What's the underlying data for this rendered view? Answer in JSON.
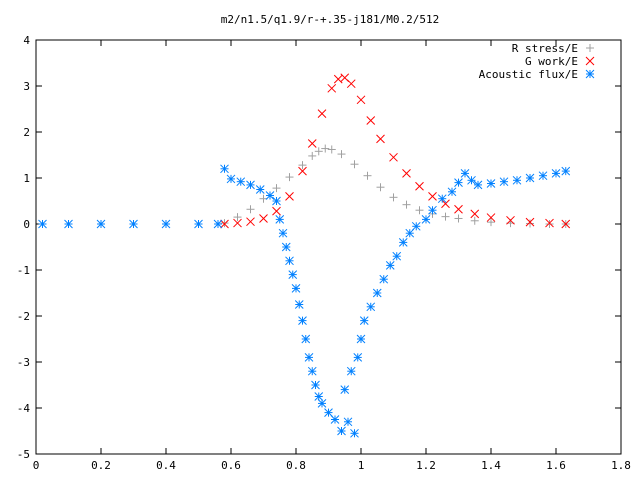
{
  "chart_data": {
    "type": "scatter",
    "title": "m2/n1.5/q1.9/r-+.35-j181/M0.2/512",
    "xlabel": "",
    "ylabel": "",
    "xlim": [
      0,
      1.8
    ],
    "ylim": [
      -5,
      4
    ],
    "xticks": [
      "0",
      "0.2",
      "0.4",
      "0.6",
      "0.8",
      "1",
      "1.2",
      "1.4",
      "1.6",
      "1.8"
    ],
    "yticks": [
      "4",
      "3",
      "2",
      "1",
      "0",
      "-1",
      "-2",
      "-3",
      "-4",
      "-5"
    ],
    "grid": false,
    "legend_position": "top-right",
    "series": [
      {
        "name": "R stress/E",
        "marker": "plus",
        "color": "#a0a0a0",
        "points": [
          [
            0.58,
            0.02
          ],
          [
            0.62,
            0.15
          ],
          [
            0.66,
            0.32
          ],
          [
            0.7,
            0.55
          ],
          [
            0.74,
            0.78
          ],
          [
            0.78,
            1.02
          ],
          [
            0.82,
            1.28
          ],
          [
            0.85,
            1.48
          ],
          [
            0.87,
            1.58
          ],
          [
            0.89,
            1.64
          ],
          [
            0.91,
            1.62
          ],
          [
            0.94,
            1.52
          ],
          [
            0.98,
            1.3
          ],
          [
            1.02,
            1.05
          ],
          [
            1.06,
            0.8
          ],
          [
            1.1,
            0.58
          ],
          [
            1.14,
            0.42
          ],
          [
            1.18,
            0.3
          ],
          [
            1.22,
            0.22
          ],
          [
            1.26,
            0.16
          ],
          [
            1.3,
            0.12
          ],
          [
            1.35,
            0.07
          ],
          [
            1.4,
            0.04
          ],
          [
            1.46,
            0.02
          ],
          [
            1.52,
            0.01
          ],
          [
            1.58,
            0.0
          ],
          [
            1.63,
            0.0
          ]
        ]
      },
      {
        "name": "G work/E",
        "marker": "cross",
        "color": "#ff0000",
        "points": [
          [
            0.58,
            0.0
          ],
          [
            0.62,
            0.02
          ],
          [
            0.66,
            0.05
          ],
          [
            0.7,
            0.12
          ],
          [
            0.74,
            0.28
          ],
          [
            0.78,
            0.6
          ],
          [
            0.82,
            1.15
          ],
          [
            0.85,
            1.75
          ],
          [
            0.88,
            2.4
          ],
          [
            0.91,
            2.95
          ],
          [
            0.93,
            3.15
          ],
          [
            0.95,
            3.18
          ],
          [
            0.97,
            3.05
          ],
          [
            1.0,
            2.7
          ],
          [
            1.03,
            2.25
          ],
          [
            1.06,
            1.85
          ],
          [
            1.1,
            1.45
          ],
          [
            1.14,
            1.1
          ],
          [
            1.18,
            0.82
          ],
          [
            1.22,
            0.6
          ],
          [
            1.26,
            0.44
          ],
          [
            1.3,
            0.32
          ],
          [
            1.35,
            0.22
          ],
          [
            1.4,
            0.14
          ],
          [
            1.46,
            0.08
          ],
          [
            1.52,
            0.04
          ],
          [
            1.58,
            0.02
          ],
          [
            1.63,
            0.0
          ]
        ]
      },
      {
        "name": "Acoustic flux/E",
        "marker": "star",
        "color": "#0080ff",
        "points": [
          [
            0.58,
            1.2
          ],
          [
            0.6,
            0.98
          ],
          [
            0.63,
            0.92
          ],
          [
            0.66,
            0.85
          ],
          [
            0.69,
            0.75
          ],
          [
            0.72,
            0.62
          ],
          [
            0.74,
            0.5
          ],
          [
            0.75,
            0.1
          ],
          [
            0.76,
            -0.2
          ],
          [
            0.77,
            -0.5
          ],
          [
            0.78,
            -0.8
          ],
          [
            0.79,
            -1.1
          ],
          [
            0.8,
            -1.4
          ],
          [
            0.81,
            -1.75
          ],
          [
            0.82,
            -2.1
          ],
          [
            0.83,
            -2.5
          ],
          [
            0.84,
            -2.9
          ],
          [
            0.85,
            -3.2
          ],
          [
            0.86,
            -3.5
          ],
          [
            0.87,
            -3.75
          ],
          [
            0.88,
            -3.9
          ],
          [
            0.9,
            -4.1
          ],
          [
            0.92,
            -4.25
          ],
          [
            0.94,
            -4.5
          ],
          [
            0.96,
            -4.3
          ],
          [
            0.98,
            -4.55
          ],
          [
            0.95,
            -3.6
          ],
          [
            0.97,
            -3.2
          ],
          [
            0.99,
            -2.9
          ],
          [
            1.0,
            -2.5
          ],
          [
            1.01,
            -2.1
          ],
          [
            1.03,
            -1.8
          ],
          [
            1.05,
            -1.5
          ],
          [
            1.07,
            -1.2
          ],
          [
            1.09,
            -0.9
          ],
          [
            1.11,
            -0.7
          ],
          [
            1.13,
            -0.4
          ],
          [
            1.15,
            -0.2
          ],
          [
            1.17,
            -0.05
          ],
          [
            1.2,
            0.1
          ],
          [
            1.22,
            0.3
          ],
          [
            1.25,
            0.55
          ],
          [
            1.28,
            0.7
          ],
          [
            1.3,
            0.9
          ],
          [
            1.32,
            1.1
          ],
          [
            1.34,
            0.95
          ],
          [
            1.36,
            0.85
          ],
          [
            1.4,
            0.88
          ],
          [
            1.44,
            0.92
          ],
          [
            1.48,
            0.95
          ],
          [
            1.52,
            1.0
          ],
          [
            1.56,
            1.05
          ],
          [
            1.6,
            1.1
          ],
          [
            1.63,
            1.15
          ],
          [
            0.02,
            0.0
          ],
          [
            0.1,
            0.0
          ],
          [
            0.2,
            0.0
          ],
          [
            0.3,
            0.0
          ],
          [
            0.4,
            0.0
          ],
          [
            0.5,
            0.0
          ],
          [
            0.56,
            0.0
          ]
        ]
      }
    ]
  }
}
